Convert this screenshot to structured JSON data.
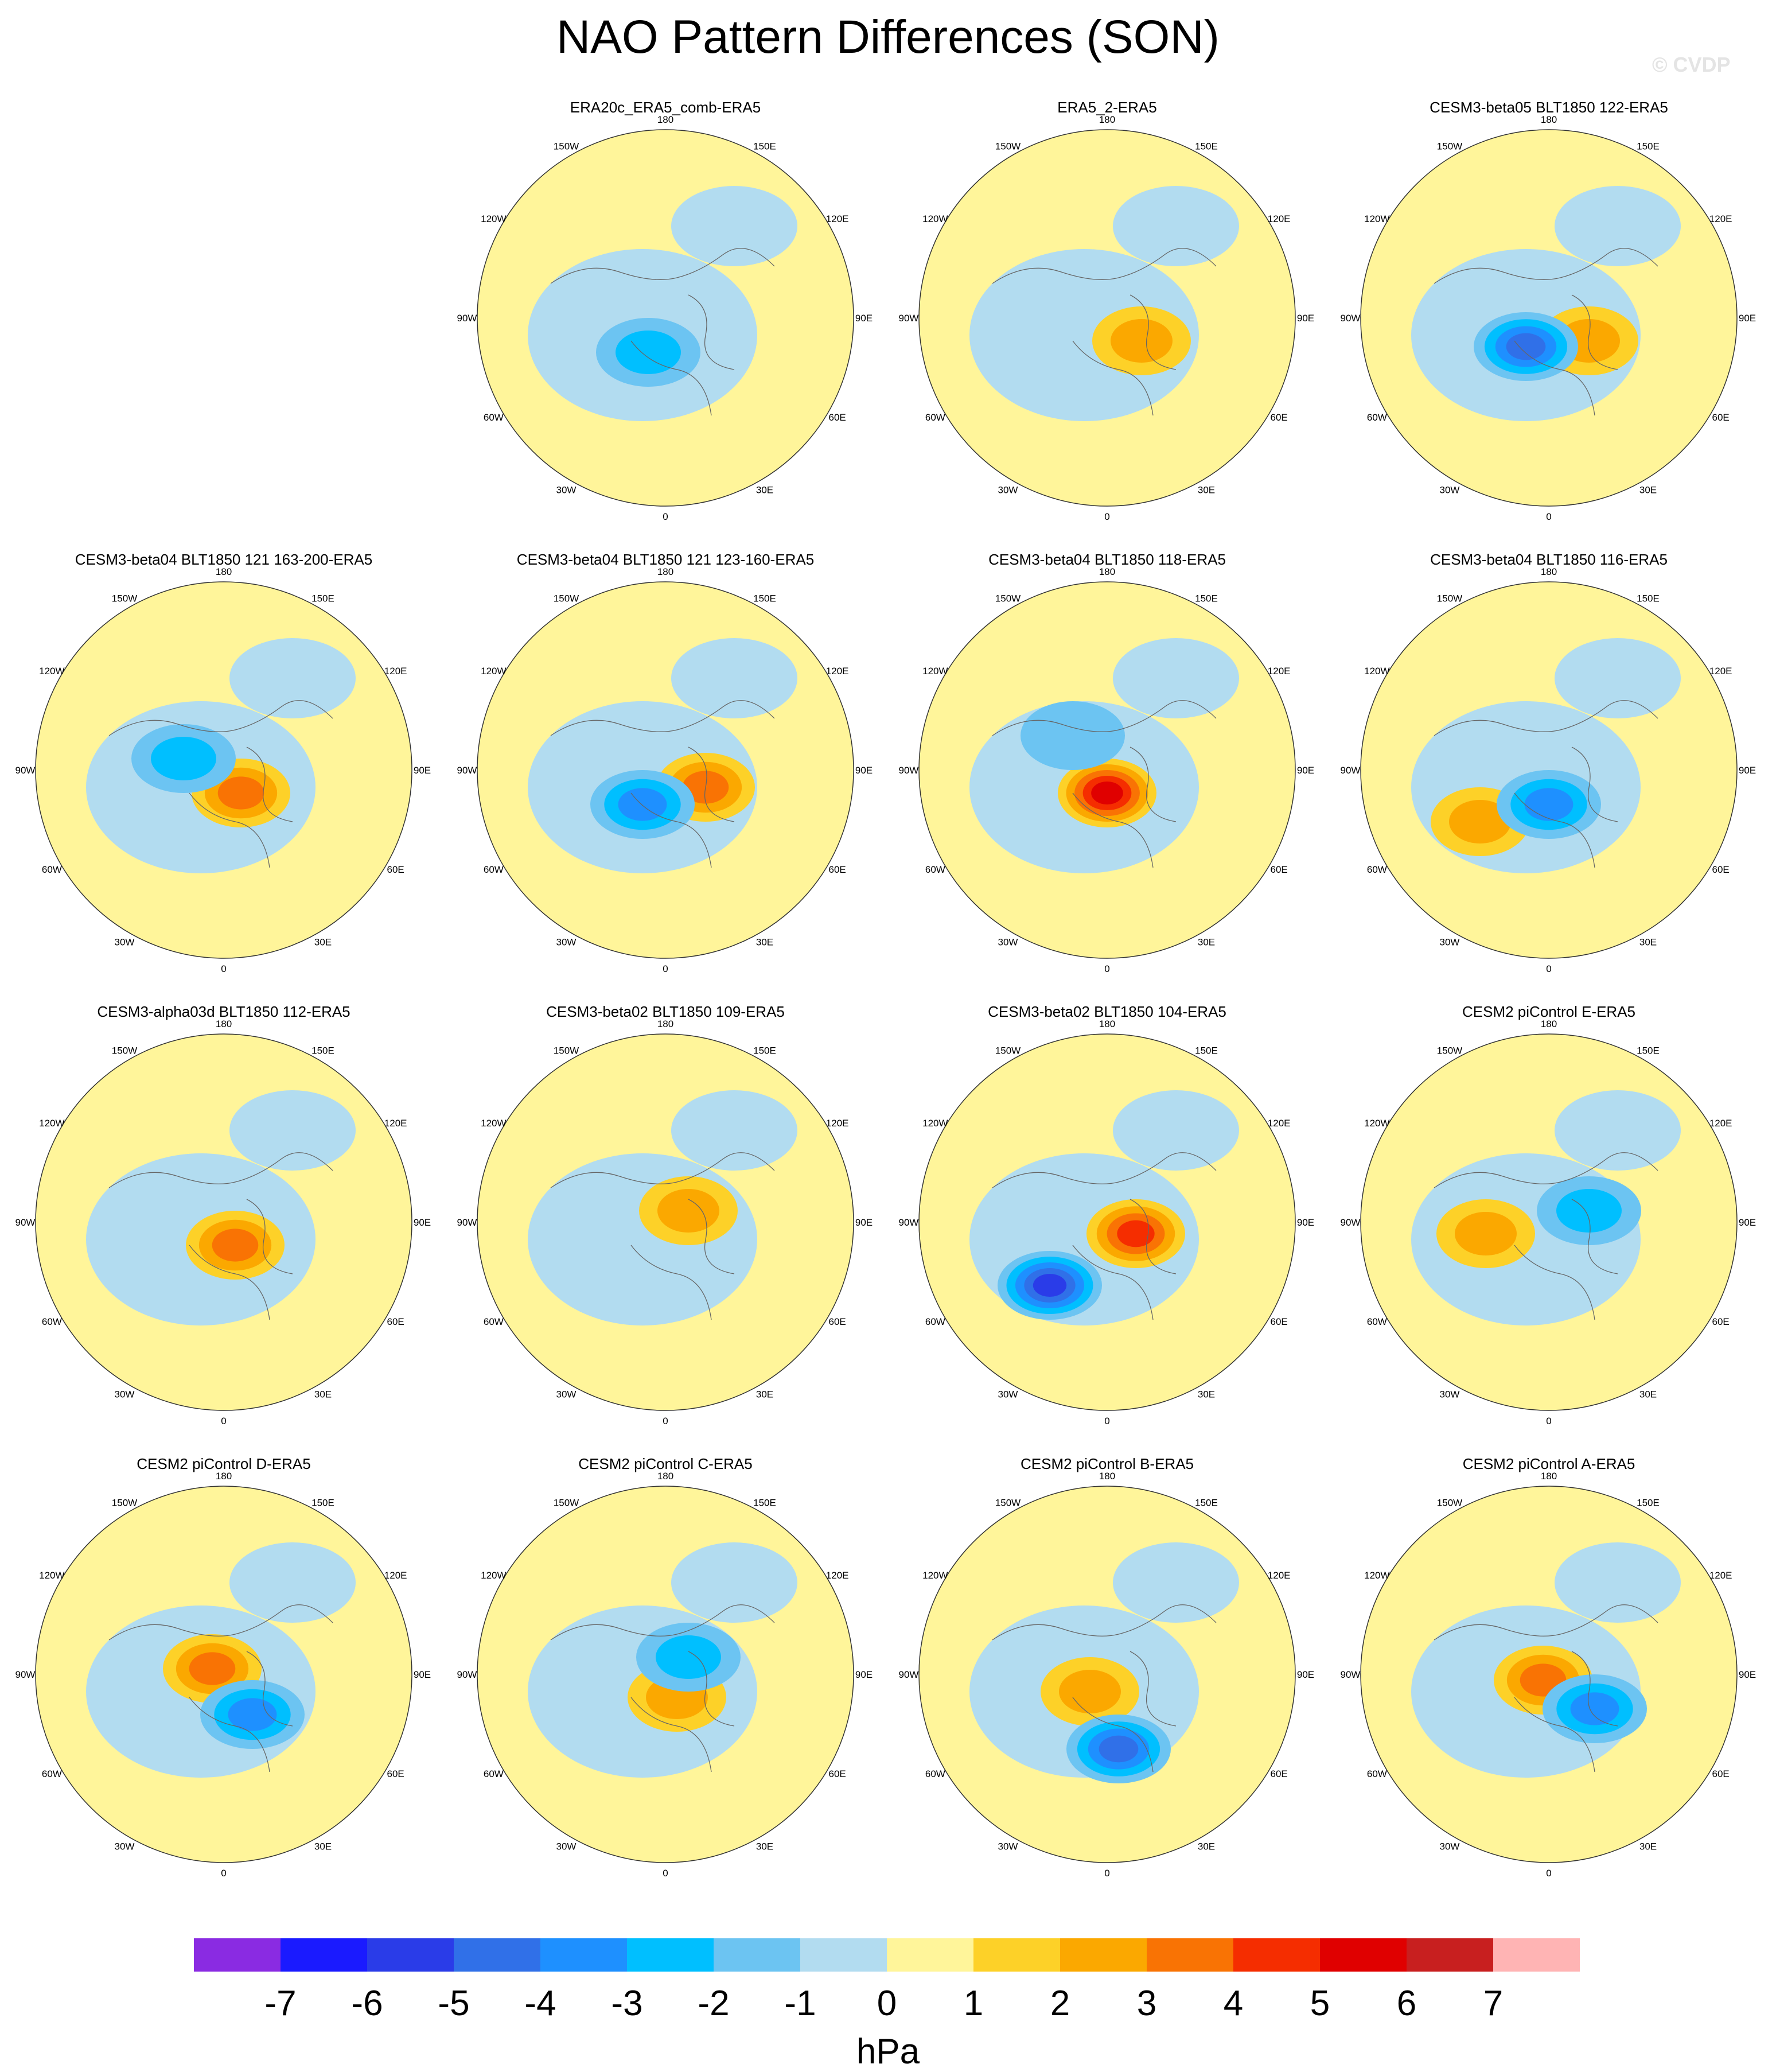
{
  "title": "NAO Pattern Differences (SON)",
  "watermark": "© CVDP",
  "chart_data": {
    "type": "contour-map",
    "projection": "polar stereographic, Northern Hemisphere",
    "longitude_labels": [
      "180",
      "150E",
      "120E",
      "90E",
      "60E",
      "30E",
      "0",
      "30W",
      "60W",
      "90W",
      "120W",
      "150W"
    ],
    "colorbar": {
      "unit": "hPa",
      "levels": [
        -7,
        -6,
        -5,
        -4,
        -3,
        -2,
        -1,
        0,
        1,
        2,
        3,
        4,
        5,
        6,
        7
      ],
      "colors": [
        "#8a2be2",
        "#1a1aff",
        "#2a3ce8",
        "#3070e8",
        "#1e90ff",
        "#00bfff",
        "#6cc4f2",
        "#b2dcf0",
        "#fff59a",
        "#fdd128",
        "#fba800",
        "#f97304",
        "#f52d00",
        "#e00000",
        "#c81f1f",
        "#ffb4b4"
      ],
      "tick_labels": [
        "-7",
        "-6",
        "-5",
        "-4",
        "-3",
        "-2",
        "-1",
        "0",
        "1",
        "2",
        "3",
        "4",
        "5",
        "6",
        "7"
      ]
    },
    "panels": [
      {
        "title": "ERA20c_ERA5_comb-ERA5",
        "row": 0,
        "col": 1,
        "max": 0,
        "min": -2
      },
      {
        "title": "ERA5_2-ERA5",
        "row": 0,
        "col": 2,
        "max": 2,
        "min": 0
      },
      {
        "title": "CESM3-beta05 BLT1850 122-ERA5",
        "row": 0,
        "col": 3,
        "max": 2,
        "min": -4
      },
      {
        "title": "CESM3-beta04 BLT1850 121 163-200-ERA5",
        "row": 1,
        "col": 0,
        "max": 3,
        "min": -2
      },
      {
        "title": "CESM3-beta04 BLT1850 121 123-160-ERA5",
        "row": 1,
        "col": 1,
        "max": 3,
        "min": -3
      },
      {
        "title": "CESM3-beta04 BLT1850 118-ERA5",
        "row": 1,
        "col": 2,
        "max": 5,
        "min": -1
      },
      {
        "title": "CESM3-beta04 BLT1850 116-ERA5",
        "row": 1,
        "col": 3,
        "max": 2,
        "min": -3
      },
      {
        "title": "CESM3-alpha03d BLT1850 112-ERA5",
        "row": 2,
        "col": 0,
        "max": 3,
        "min": 0
      },
      {
        "title": "CESM3-beta02 BLT1850 109-ERA5",
        "row": 2,
        "col": 1,
        "max": 2,
        "min": 0
      },
      {
        "title": "CESM3-beta02 BLT1850 104-ERA5",
        "row": 2,
        "col": 2,
        "max": 4,
        "min": -5
      },
      {
        "title": "CESM2 piControl E-ERA5",
        "row": 2,
        "col": 3,
        "max": 2,
        "min": -2
      },
      {
        "title": "CESM2 piControl D-ERA5",
        "row": 3,
        "col": 0,
        "max": 3,
        "min": -3
      },
      {
        "title": "CESM2 piControl C-ERA5",
        "row": 3,
        "col": 1,
        "max": 2,
        "min": -2
      },
      {
        "title": "CESM2 piControl B-ERA5",
        "row": 3,
        "col": 2,
        "max": 2,
        "min": -4
      },
      {
        "title": "CESM2 piControl A-ERA5",
        "row": 3,
        "col": 3,
        "max": 3,
        "min": -3
      }
    ]
  }
}
